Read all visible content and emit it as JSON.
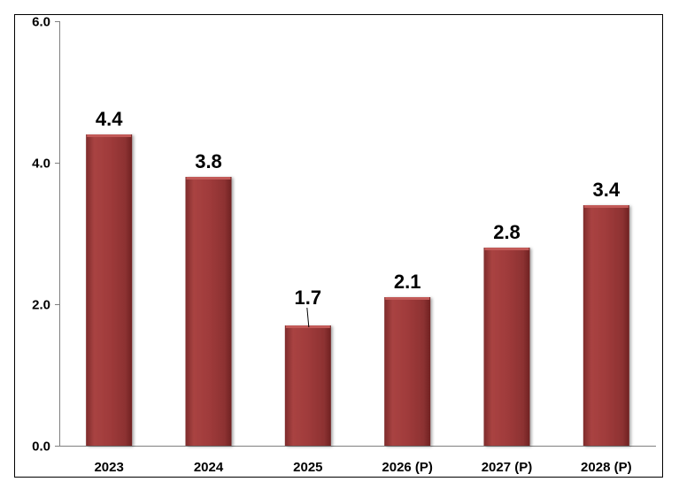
{
  "chart_data": {
    "type": "bar",
    "categories": [
      "2023",
      "2024",
      "2025",
      "2026 (P)",
      "2027 (P)",
      "2028 (P)"
    ],
    "values": [
      4.4,
      3.8,
      1.7,
      2.1,
      2.8,
      3.4
    ],
    "data_labels": [
      "4.4",
      "3.8",
      "1.7",
      "2.1",
      "2.8",
      "3.4"
    ],
    "ylim": [
      0,
      6
    ],
    "yticks": [
      "0.0",
      "2.0",
      "4.0",
      "6.0"
    ],
    "ytick_values": [
      0,
      2,
      4,
      6
    ],
    "grid": false,
    "legend": "none",
    "bar_color": "#9e3a3a",
    "bar_highlight": "#c25a58",
    "bar_shadow": "#7a2626"
  }
}
